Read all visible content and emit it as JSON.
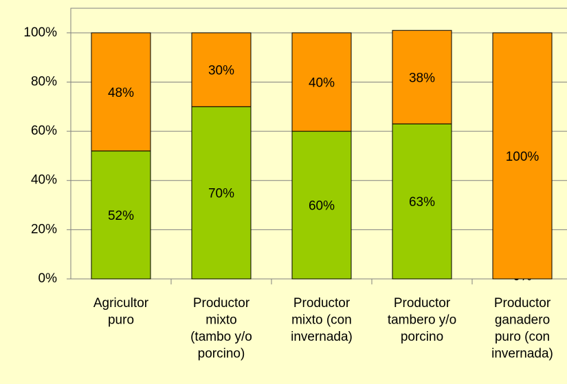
{
  "chart_data": {
    "type": "stacked_bar",
    "categories": [
      [
        "Agricultor",
        "puro"
      ],
      [
        "Productor",
        "mixto",
        "(tambo y/o",
        "porcino)"
      ],
      [
        "Productor",
        "mixto (con",
        "invernada)"
      ],
      [
        "Productor",
        "tambero y/o",
        "porcino"
      ],
      [
        "Productor",
        "ganadero",
        "puro (con",
        "invernada)"
      ]
    ],
    "series": [
      {
        "color": "#99cc00",
        "values": [
          52,
          70,
          60,
          63,
          0
        ],
        "value_labels": [
          "52%",
          "70%",
          "60%",
          "63%",
          "0%"
        ]
      },
      {
        "color": "#ff9900",
        "values": [
          48,
          30,
          40,
          38,
          100
        ],
        "value_labels": [
          "48%",
          "30%",
          "40%",
          "38%",
          "100%"
        ]
      }
    ],
    "ylim": [
      0,
      110
    ],
    "yticks": [
      {
        "value": 0,
        "label": "0%"
      },
      {
        "value": 20,
        "label": "20%"
      },
      {
        "value": 40,
        "label": "40%"
      },
      {
        "value": 60,
        "label": "60%"
      },
      {
        "value": 80,
        "label": "80%"
      },
      {
        "value": 100,
        "label": "100%"
      }
    ],
    "grid": true
  }
}
